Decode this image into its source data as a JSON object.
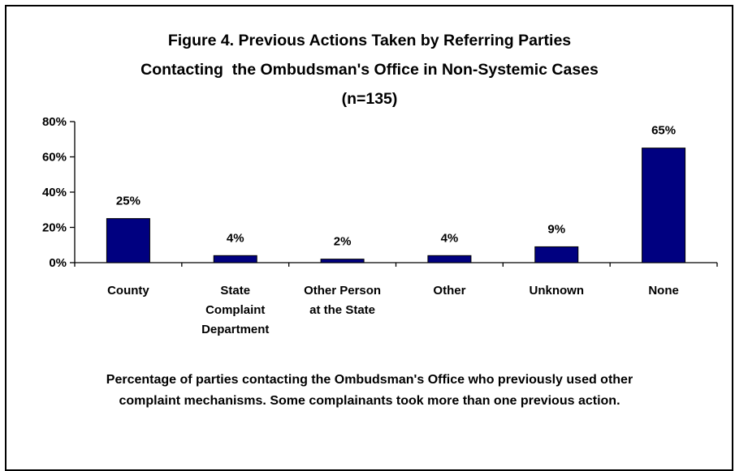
{
  "chart_data": {
    "type": "bar",
    "title_lines": [
      "Figure 4. Previous Actions Taken by Referring Parties",
      "Contacting  the Ombudsman's Office in Non-Systemic Cases",
      "(n=135)"
    ],
    "categories": [
      [
        "County"
      ],
      [
        "State",
        "Complaint",
        "Department"
      ],
      [
        "Other Person",
        "at the State"
      ],
      [
        "Other"
      ],
      [
        "Unknown"
      ],
      [
        "None"
      ]
    ],
    "values": [
      25,
      4,
      2,
      4,
      9,
      65
    ],
    "data_labels": [
      "25%",
      "4%",
      "2%",
      "4%",
      "9%",
      "65%"
    ],
    "y_ticks": [
      "0%",
      "20%",
      "40%",
      "60%",
      "80%"
    ],
    "ylim": [
      0,
      80
    ],
    "grid": false,
    "bar_color": "#000080"
  },
  "caption": {
    "line1": "Percentage of parties contacting the Ombudsman's Office who previously used other",
    "line2": "complaint mechanisms. Some complainants took more than one previous action."
  }
}
